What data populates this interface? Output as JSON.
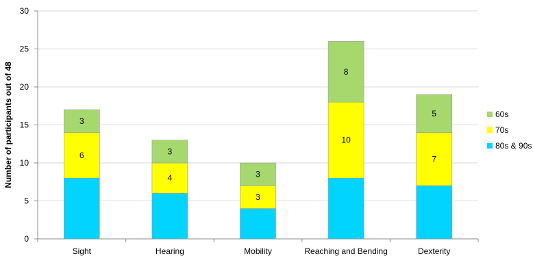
{
  "chart_data": {
    "type": "bar",
    "stacked": true,
    "title": "",
    "xlabel": "",
    "ylabel": "Number of participants out of 48",
    "ylim": [
      0,
      30
    ],
    "yticks": [
      0,
      5,
      10,
      15,
      20,
      25,
      30
    ],
    "categories": [
      "Sight",
      "Hearing",
      "Mobility",
      "Reaching and Bending",
      "Dexterity"
    ],
    "series": [
      {
        "name": "80s & 90s",
        "color": "#00d4ff",
        "values": [
          8,
          6,
          4,
          8,
          7
        ]
      },
      {
        "name": "70s",
        "color": "#ffff00",
        "values": [
          6,
          4,
          3,
          10,
          7
        ]
      },
      {
        "name": "60s",
        "color": "#a6d86e",
        "values": [
          3,
          3,
          3,
          8,
          5
        ]
      }
    ],
    "data_labels": [
      [
        null,
        null,
        null,
        null,
        null
      ],
      [
        "6",
        "4",
        "3",
        "10",
        "7"
      ],
      [
        "3",
        "3",
        "3",
        "8",
        "5"
      ]
    ],
    "legend_order": [
      "60s",
      "70s",
      "80s & 90s"
    ],
    "legend_position": "right",
    "grid": true
  }
}
